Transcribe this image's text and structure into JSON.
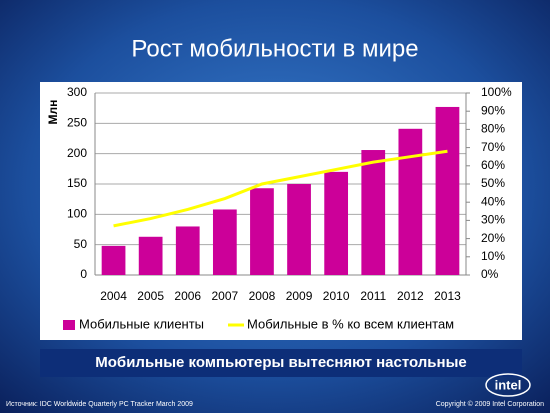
{
  "chart_data": {
    "type": "bar",
    "title": "Рост мобильности в мире",
    "y_label": "Млн",
    "categories": [
      "2004",
      "2005",
      "2006",
      "2007",
      "2008",
      "2009",
      "2010",
      "2011",
      "2012",
      "2013"
    ],
    "series": [
      {
        "name": "Мобильные клиенты",
        "color": "#cc0099",
        "values": [
          48,
          63,
          80,
          108,
          143,
          150,
          170,
          206,
          241,
          277
        ]
      },
      {
        "name": "Мобильные в % ко всем клиентам",
        "color": "#ffff00",
        "type": "line",
        "axis": "y2",
        "values": [
          27,
          31,
          36,
          42,
          50,
          54,
          58,
          62,
          65,
          68
        ]
      }
    ],
    "ylim": [
      0,
      300
    ],
    "yticks": [
      0,
      50,
      100,
      150,
      200,
      250,
      300
    ],
    "y2lim": [
      0,
      100
    ],
    "y2ticks": [
      {
        "value": 0,
        "label": "0%"
      },
      {
        "value": 10,
        "label": "10%"
      },
      {
        "value": 20,
        "label": "20%"
      },
      {
        "value": 30,
        "label": "30%"
      },
      {
        "value": 40,
        "label": "40%"
      },
      {
        "value": 50,
        "label": "50%"
      },
      {
        "value": 60,
        "label": "60%"
      },
      {
        "value": 70,
        "label": "70%"
      },
      {
        "value": 80,
        "label": "80%"
      },
      {
        "value": 90,
        "label": "90%"
      },
      {
        "value": 100,
        "label": "100%"
      }
    ],
    "grid": true
  },
  "banner": "Мобильные компьютеры вытесняют настольные",
  "source": "Источник: IDC Worldwide Quarterly PC Tracker March 2009",
  "copyright": "Copyright © 2009 Intel Corporation",
  "logo": "intel"
}
